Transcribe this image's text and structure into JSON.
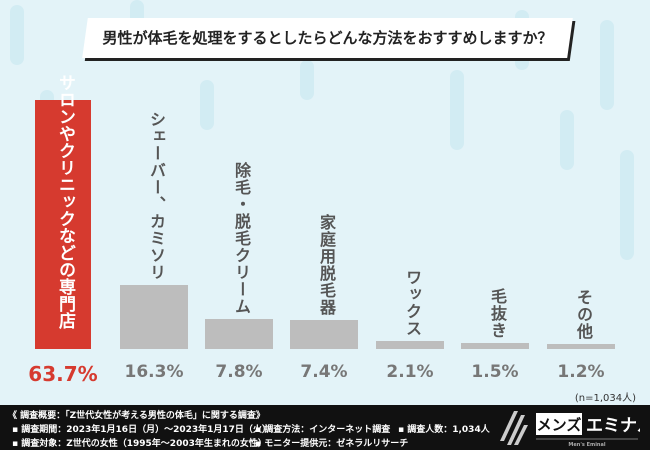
{
  "header": {
    "question": "男性が体毛を処理をするとしたらどんな方法をおすすめしますか？"
  },
  "chart_data": {
    "type": "bar",
    "categories": [
      "サロンやクリニックなどの専門店",
      "シェーバー、カミソリ",
      "除毛・脱毛クリーム",
      "家庭用脱毛器",
      "ワックス",
      "毛抜き",
      "その他"
    ],
    "values": [
      63.7,
      16.3,
      7.8,
      7.4,
      2.1,
      1.5,
      1.2
    ],
    "value_labels": [
      "63.7%",
      "16.3%",
      "7.8%",
      "7.4%",
      "2.1%",
      "1.5%",
      "1.2%"
    ],
    "ylim": [
      0,
      63.7
    ],
    "highlight_color": "#d63a2f",
    "bar_color": "#bdbdbd",
    "title": "",
    "xlabel": "",
    "ylabel": ""
  },
  "sample": "(n=1,034人)",
  "footer": {
    "title": "《 調査概要：「Z世代女性が考える男性の体毛」に関する調査》",
    "period": "▪ 調査期間：2023年1月16日（月）〜2023年1月17日（火）",
    "target": "▪ 調査対象：Z世代の女性（1995年〜2003年生まれの女性）",
    "method": "▪ 調査方法：インターネット調査",
    "provider": "▪ モニター提供元：ゼネラルリサーチ",
    "count": "▪ 調査人数：1,034人",
    "logo_text": "メンズ エミナル",
    "logo_sub": "Men's Eminal"
  }
}
